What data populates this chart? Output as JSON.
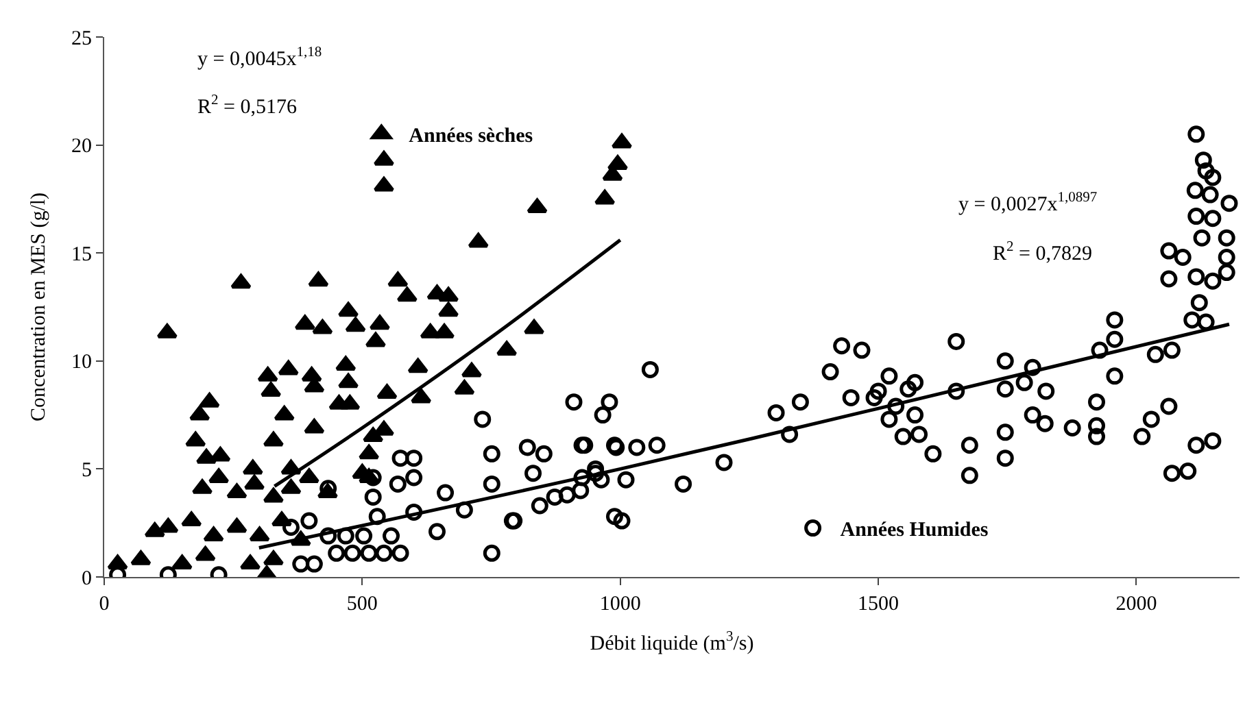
{
  "chart_data": {
    "type": "scatter",
    "xlabel": "Débit liquide (m$^{3}$/s)",
    "ylabel": "Concentration en MES (g/l)",
    "xlim": [
      0,
      2200
    ],
    "xticks": [
      0,
      500,
      1000,
      1500,
      2000
    ],
    "ylim": [
      0,
      25
    ],
    "yticks": [
      0,
      5,
      10,
      15,
      20,
      25
    ],
    "legend": "bottom right",
    "annotations": [
      "y = 0,0045x$^{1,18}$",
      "R$^{2}$ = 0,5176",
      "y = 0,0027x$^{1,0897}$",
      "R$^{2}$ = 0,7829"
    ],
    "series": [
      {
        "name": "Années sèches",
        "color": "#000000",
        "marker": "triangle",
        "x": [
          122,
          265,
          415,
          569,
          587,
          645,
          667,
          667,
          473,
          389,
          423,
          487,
          534,
          526,
          632,
          659,
          833,
          780,
          725,
          839,
          542,
          542,
          970,
          985,
          995,
          1003,
          317,
          357,
          402,
          468,
          608,
          323,
          349,
          407,
          455,
          476,
          473,
          548,
          614,
          698,
          712,
          204,
          185,
          407,
          328,
          177,
          198,
          225,
          362,
          521,
          542,
          513,
          288,
          190,
          222,
          257,
          291,
          328,
          362,
          397,
          433,
          98,
          124,
          169,
          212,
          257,
          301,
          344,
          381,
          328,
          283,
          71,
          26,
          151,
          315,
          196,
          513,
          500
        ],
        "values": [
          11.3,
          13.6,
          13.7,
          13.7,
          13.0,
          13.1,
          13.0,
          12.3,
          12.3,
          11.7,
          11.5,
          11.6,
          11.7,
          10.9,
          11.3,
          11.3,
          11.5,
          10.5,
          15.5,
          17.1,
          18.1,
          19.3,
          17.5,
          18.6,
          19.1,
          20.1,
          9.3,
          9.6,
          9.3,
          9.8,
          9.7,
          8.6,
          7.5,
          8.8,
          8.0,
          8.0,
          9.0,
          8.5,
          8.3,
          8.7,
          9.5,
          8.1,
          7.5,
          6.9,
          6.3,
          6.3,
          5.5,
          5.6,
          5.0,
          6.5,
          6.8,
          5.7,
          5.0,
          4.1,
          4.6,
          3.9,
          4.3,
          3.7,
          4.1,
          4.6,
          3.9,
          2.1,
          2.3,
          2.6,
          1.9,
          2.3,
          1.9,
          2.6,
          1.7,
          0.8,
          0.6,
          0.8,
          0.6,
          0.6,
          0.1,
          1.0,
          4.6,
          4.8
        ]
      },
      {
        "name": "Années Humides",
        "color": "#000000",
        "marker": "circle",
        "x": [
          751,
          910,
          979,
          966,
          733,
          751,
          751,
          820,
          831,
          852,
          844,
          791,
          873,
          897,
          926,
          952,
          989,
          926,
          989,
          661,
          698,
          645,
          600,
          574,
          600,
          569,
          600,
          521,
          521,
          529,
          503,
          556,
          574,
          542,
          513,
          481,
          450,
          468,
          434,
          434,
          397,
          362,
          407,
          381,
          222,
          124,
          26,
          1003,
          1122,
          1201,
          1058,
          1302,
          1349,
          1328,
          1429,
          1468,
          1407,
          1447,
          1492,
          992,
          1032,
          1071,
          1011,
          963,
          931,
          923,
          952,
          794,
          2116,
          2130,
          2135,
          2148,
          2114,
          2143,
          2180,
          2116,
          2148,
          2127,
          2175,
          2063,
          2090,
          2175,
          2063,
          2116,
          2148,
          2175,
          2122,
          2108,
          2135,
          1651,
          1958,
          1958,
          1929,
          1521,
          1500,
          1558,
          1571,
          1534,
          1571,
          1521,
          1548,
          1579,
          1606,
          1651,
          1677,
          1677,
          1746,
          1746,
          1783,
          1799,
          1825,
          1799,
          1823,
          1746,
          1746,
          1876,
          1923,
          1923,
          1923,
          1958,
          2011,
          2029,
          2063,
          2037,
          2069,
          2069,
          2100,
          2116,
          2148
        ],
        "values": [
          1.1,
          8.1,
          8.1,
          7.5,
          7.3,
          5.7,
          4.3,
          6.0,
          4.8,
          5.7,
          3.3,
          2.6,
          3.7,
          3.8,
          4.6,
          4.8,
          2.8,
          6.1,
          6.1,
          3.9,
          3.1,
          2.1,
          3.0,
          5.5,
          5.5,
          4.3,
          4.6,
          4.6,
          3.7,
          2.8,
          1.9,
          1.9,
          1.1,
          1.1,
          1.1,
          1.1,
          1.1,
          1.9,
          1.9,
          4.1,
          2.6,
          2.3,
          0.6,
          0.6,
          0.1,
          0.1,
          0.1,
          2.6,
          4.3,
          5.3,
          9.6,
          7.6,
          8.1,
          6.6,
          10.7,
          10.5,
          9.5,
          8.3,
          8.3,
          6.0,
          6.0,
          6.1,
          4.5,
          4.5,
          6.1,
          4.0,
          5.0,
          2.6,
          20.5,
          19.3,
          18.8,
          18.5,
          17.9,
          17.7,
          17.3,
          16.7,
          16.6,
          15.7,
          15.7,
          15.1,
          14.8,
          14.8,
          13.8,
          13.9,
          13.7,
          14.1,
          12.7,
          11.9,
          11.8,
          10.9,
          11.9,
          11.0,
          10.5,
          9.3,
          8.6,
          8.7,
          9.0,
          7.9,
          7.5,
          7.3,
          6.5,
          6.6,
          5.7,
          8.6,
          6.1,
          4.7,
          10.0,
          8.7,
          9.0,
          9.7,
          8.6,
          7.5,
          7.1,
          6.7,
          5.5,
          6.9,
          8.1,
          7.0,
          6.5,
          9.3,
          6.5,
          7.3,
          7.9,
          10.3,
          10.5,
          4.8,
          4.9,
          6.1,
          6.3
        ]
      },
      {
        "type": "line",
        "color": "#000000",
        "marker": "none",
        "line_style": "solid",
        "x": [
          330,
          500,
          750,
          1000
        ],
        "values": [
          4.2,
          6.9,
          11.1,
          15.6
        ]
      },
      {
        "type": "line",
        "color": "#000000",
        "marker": "none",
        "line_style": "solid",
        "x": [
          300,
          1000,
          1500,
          2180
        ],
        "values": [
          1.35,
          5.0,
          7.8,
          11.7
        ]
      }
    ]
  }
}
